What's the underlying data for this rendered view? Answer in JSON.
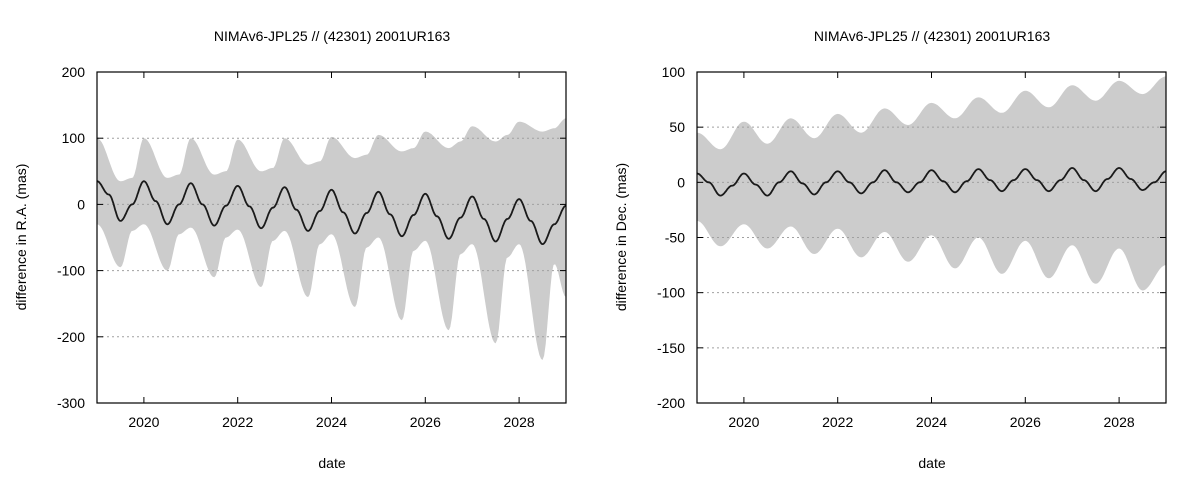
{
  "chart_data": [
    {
      "type": "area",
      "title": "NIMAv6-JPL25 // (42301) 2001UR163",
      "xlabel": "date",
      "ylabel": "difference in R.A. (mas)",
      "xlim": [
        2019.0,
        2029.0
      ],
      "ylim": [
        -300,
        200
      ],
      "x_ticks": [
        2020,
        2022,
        2024,
        2026,
        2028
      ],
      "y_ticks": [
        -300,
        -200,
        -100,
        0,
        100,
        200
      ],
      "grid": "horizontal dotted",
      "band_color": "#cccccc",
      "line_color": "#1a1a1a",
      "series": [
        {
          "kind": "uncertainty-band",
          "x": [
            2019.0,
            2019.5,
            2019.75,
            2020.0,
            2020.5,
            2020.75,
            2021.0,
            2021.5,
            2021.75,
            2022.0,
            2022.5,
            2022.75,
            2023.0,
            2023.5,
            2023.75,
            2024.0,
            2024.5,
            2024.75,
            2025.0,
            2025.5,
            2025.75,
            2026.0,
            2026.5,
            2026.75,
            2027.0,
            2027.5,
            2027.75,
            2028.0,
            2028.5,
            2028.75,
            2029.0
          ],
          "upper": [
            100,
            35,
            40,
            100,
            40,
            45,
            100,
            45,
            50,
            98,
            50,
            55,
            100,
            60,
            65,
            102,
            70,
            75,
            105,
            80,
            85,
            110,
            85,
            95,
            118,
            95,
            105,
            125,
            110,
            115,
            130
          ],
          "lower": [
            -30,
            -95,
            -40,
            -30,
            -100,
            -45,
            -35,
            -110,
            -50,
            -38,
            -125,
            -55,
            -40,
            -140,
            -60,
            -45,
            -155,
            -65,
            -50,
            -175,
            -70,
            -55,
            -190,
            -75,
            -60,
            -210,
            -80,
            -60,
            -235,
            -90,
            -140
          ]
        },
        {
          "kind": "line",
          "x": [
            2019.0,
            2019.25,
            2019.5,
            2019.75,
            2020.0,
            2020.25,
            2020.5,
            2020.75,
            2021.0,
            2021.25,
            2021.5,
            2021.75,
            2022.0,
            2022.25,
            2022.5,
            2022.75,
            2023.0,
            2023.25,
            2023.5,
            2023.75,
            2024.0,
            2024.25,
            2024.5,
            2024.75,
            2025.0,
            2025.25,
            2025.5,
            2025.75,
            2026.0,
            2026.25,
            2026.5,
            2026.75,
            2027.0,
            2027.25,
            2027.5,
            2027.75,
            2028.0,
            2028.25,
            2028.5,
            2028.75,
            2029.0
          ],
          "values": [
            35,
            15,
            -25,
            0,
            35,
            5,
            -30,
            0,
            32,
            0,
            -32,
            -2,
            28,
            -3,
            -36,
            -5,
            26,
            -8,
            -40,
            -10,
            22,
            -12,
            -44,
            -13,
            19,
            -15,
            -48,
            -16,
            16,
            -18,
            -52,
            -20,
            12,
            -22,
            -56,
            -22,
            8,
            -25,
            -60,
            -30,
            -2
          ],
          "period_years": 0.97
        }
      ]
    },
    {
      "type": "area",
      "title": "NIMAv6-JPL25 // (42301) 2001UR163",
      "xlabel": "date",
      "ylabel": "difference in Dec. (mas)",
      "xlim": [
        2019.0,
        2029.0
      ],
      "ylim": [
        -200,
        100
      ],
      "x_ticks": [
        2020,
        2022,
        2024,
        2026,
        2028
      ],
      "y_ticks": [
        -200,
        -150,
        -100,
        -50,
        0,
        50,
        100
      ],
      "grid": "horizontal dotted",
      "band_color": "#cccccc",
      "line_color": "#1a1a1a",
      "series": [
        {
          "kind": "uncertainty-band",
          "x": [
            2019.0,
            2019.5,
            2020.0,
            2020.5,
            2021.0,
            2021.5,
            2022.0,
            2022.5,
            2023.0,
            2023.5,
            2024.0,
            2024.5,
            2025.0,
            2025.5,
            2026.0,
            2026.5,
            2027.0,
            2027.5,
            2028.0,
            2028.5,
            2029.0
          ],
          "upper": [
            45,
            30,
            55,
            35,
            58,
            40,
            62,
            45,
            67,
            52,
            72,
            58,
            77,
            63,
            83,
            68,
            88,
            74,
            92,
            80,
            96
          ],
          "lower": [
            -35,
            -58,
            -38,
            -60,
            -40,
            -65,
            -42,
            -68,
            -45,
            -72,
            -48,
            -78,
            -50,
            -83,
            -53,
            -87,
            -57,
            -92,
            -60,
            -98,
            -75
          ]
        },
        {
          "kind": "line",
          "x": [
            2019.0,
            2019.25,
            2019.5,
            2019.75,
            2020.0,
            2020.25,
            2020.5,
            2020.75,
            2021.0,
            2021.25,
            2021.5,
            2021.75,
            2022.0,
            2022.25,
            2022.5,
            2022.75,
            2023.0,
            2023.25,
            2023.5,
            2023.75,
            2024.0,
            2024.25,
            2024.5,
            2024.75,
            2025.0,
            2025.25,
            2025.5,
            2025.75,
            2026.0,
            2026.25,
            2026.5,
            2026.75,
            2027.0,
            2027.25,
            2027.5,
            2027.75,
            2028.0,
            2028.25,
            2028.5,
            2028.75,
            2029.0
          ],
          "values": [
            8,
            0,
            -12,
            -3,
            8,
            -2,
            -12,
            0,
            10,
            -1,
            -11,
            0,
            10,
            0,
            -10,
            0,
            11,
            0,
            -9,
            0,
            11,
            1,
            -9,
            1,
            12,
            2,
            -8,
            2,
            12,
            2,
            -8,
            2,
            13,
            2,
            -8,
            3,
            13,
            3,
            -7,
            0,
            10
          ],
          "period_years": 0.97
        }
      ]
    }
  ]
}
